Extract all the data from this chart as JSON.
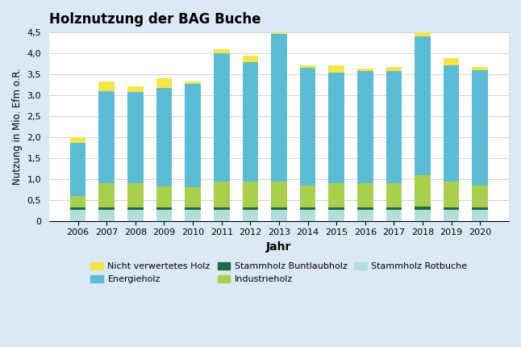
{
  "years": [
    2006,
    2007,
    2008,
    2009,
    2010,
    2011,
    2012,
    2013,
    2014,
    2015,
    2016,
    2017,
    2018,
    2019,
    2020
  ],
  "stammholz_rotbuche": [
    0.27,
    0.27,
    0.27,
    0.27,
    0.27,
    0.27,
    0.27,
    0.27,
    0.27,
    0.27,
    0.27,
    0.27,
    0.27,
    0.27,
    0.27
  ],
  "stammholz_buntlaubholz": [
    0.05,
    0.05,
    0.05,
    0.05,
    0.05,
    0.05,
    0.05,
    0.05,
    0.05,
    0.05,
    0.05,
    0.05,
    0.08,
    0.05,
    0.05
  ],
  "industrieholz": [
    0.28,
    0.58,
    0.58,
    0.5,
    0.48,
    0.62,
    0.62,
    0.62,
    0.52,
    0.58,
    0.58,
    0.58,
    0.75,
    0.62,
    0.52
  ],
  "energieholz": [
    1.27,
    2.2,
    2.17,
    2.35,
    2.47,
    3.06,
    2.84,
    3.52,
    2.82,
    2.64,
    2.67,
    2.67,
    3.3,
    2.77,
    2.75
  ],
  "nicht_verwertet": [
    0.13,
    0.22,
    0.15,
    0.23,
    0.05,
    0.1,
    0.17,
    0.28,
    0.06,
    0.17,
    0.06,
    0.1,
    0.2,
    0.17,
    0.08
  ],
  "color_stammholz_rotbuche": "#b2dfdb",
  "color_stammholz_buntlaubholz": "#1a6b4a",
  "color_industrieholz": "#aad04b",
  "color_energieholz": "#5bbcd6",
  "color_nicht_verwertet": "#f5e642",
  "title": "Holznutzung der BAG Buche",
  "xlabel": "Jahr",
  "ylabel": "Nutzung in Mio. Efm o.R.",
  "ylim": [
    0,
    4.5
  ],
  "yticks": [
    0,
    0.5,
    1.0,
    1.5,
    2.0,
    2.5,
    3.0,
    3.5,
    4.0,
    4.5
  ],
  "ytick_labels": [
    "0",
    "0,5",
    "1,0",
    "1,5",
    "2,0",
    "2,5",
    "3,0",
    "3,5",
    "4,0",
    "4,5"
  ],
  "legend_nicht_verwertet": "Nicht verwertetes Holz",
  "legend_energieholz": "Energieholz",
  "legend_stammholz_buntlaubholz": "Stammholz Buntlaubholz",
  "legend_industrieholz": "Industrieholz",
  "legend_stammholz_rotbuche": "Stammholz Rotbuche",
  "background_color": "#dce9f5",
  "plot_bg_color": "#ffffff"
}
